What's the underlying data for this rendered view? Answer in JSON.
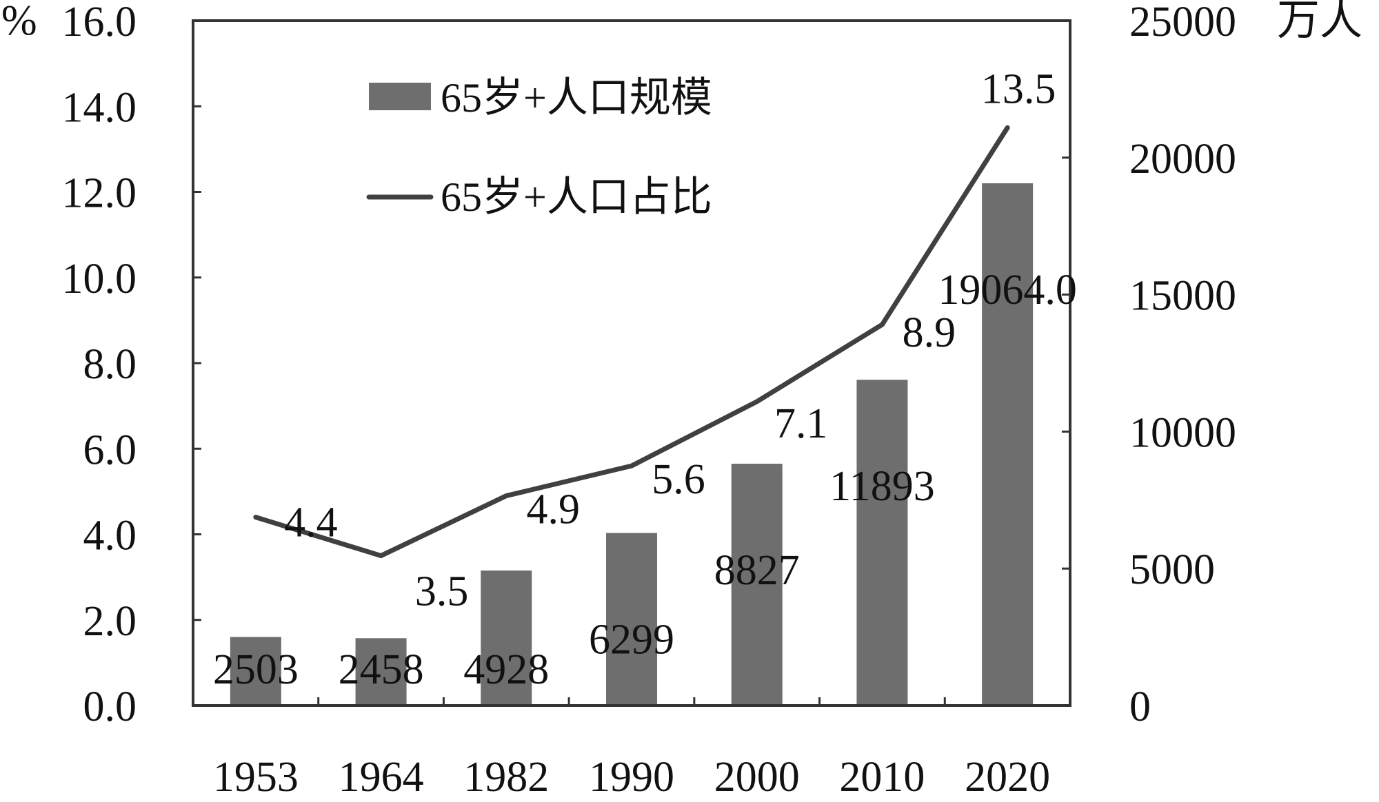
{
  "chart_data": {
    "type": "bar",
    "categories": [
      "1953",
      "1964",
      "1982",
      "1990",
      "2000",
      "2010",
      "2020"
    ],
    "series": [
      {
        "name": "65岁+人口规模",
        "type": "bar",
        "axis": "right",
        "values": [
          2503,
          2458,
          4928,
          6299,
          8827,
          11893,
          19064
        ],
        "labels": [
          "2503",
          "2458",
          "4928",
          "6299",
          "8827",
          "11893",
          "19064.0"
        ],
        "color": "#6e6e6e"
      },
      {
        "name": "65岁+人口占比",
        "type": "line",
        "axis": "left",
        "values": [
          4.4,
          3.5,
          4.9,
          5.6,
          7.1,
          8.9,
          13.5
        ],
        "labels": [
          "4.4",
          "3.5",
          "4.9",
          "5.6",
          "7.1",
          "8.9",
          "13.5"
        ],
        "color": "#404040"
      }
    ],
    "y_left": {
      "unit": "%",
      "ylim": [
        0,
        16
      ],
      "ticks": [
        "0.0",
        "2.0",
        "4.0",
        "6.0",
        "8.0",
        "10.0",
        "12.0",
        "14.0",
        "16.0"
      ]
    },
    "y_right": {
      "unit": "万人",
      "ylim": [
        0,
        25000
      ],
      "ticks": [
        "0",
        "5000",
        "10000",
        "15000",
        "20000",
        "25000"
      ]
    },
    "legend": {
      "position": "top-left",
      "entries": [
        "65岁+人口规模",
        "65岁+人口占比"
      ]
    },
    "grid": false
  }
}
